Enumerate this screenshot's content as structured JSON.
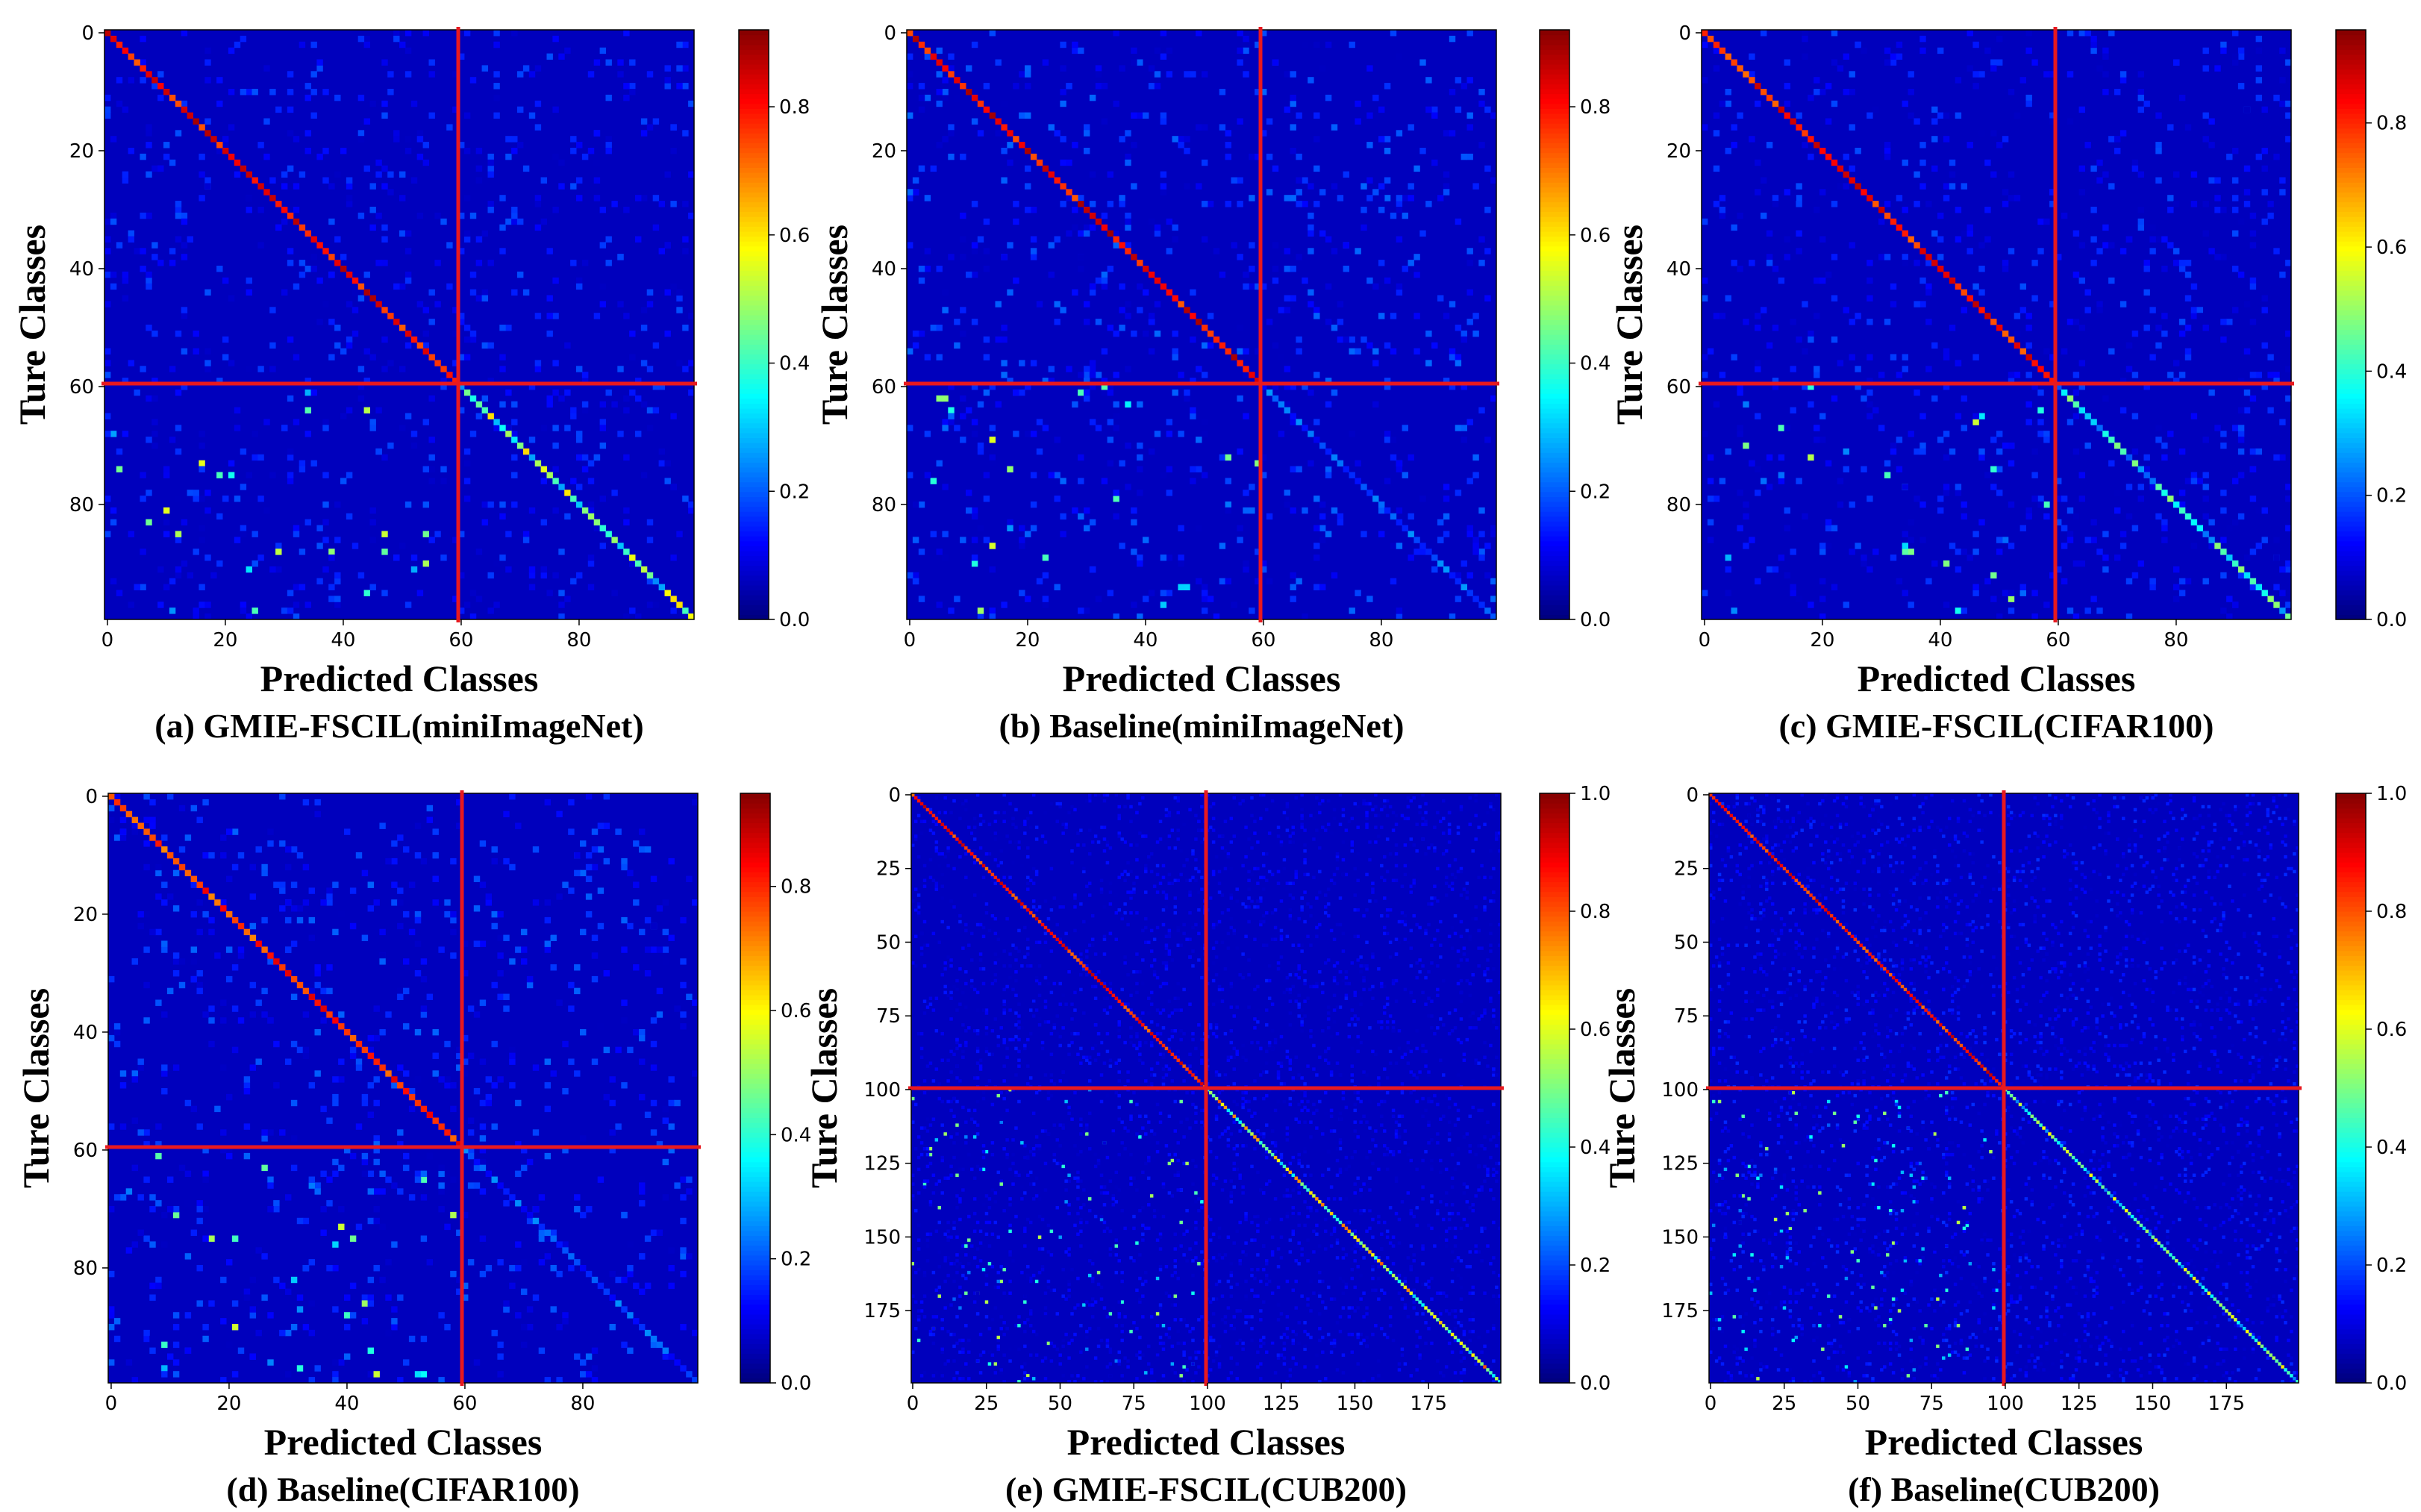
{
  "chart_data": [
    {
      "type": "heatmap",
      "title": "(a) GMIE-FSCIL(miniImageNet)",
      "xlabel": "Predicted Classes",
      "ylabel": "Ture Classes",
      "n_classes": 100,
      "base_classes": 60,
      "x_ticks": [
        "0",
        "20",
        "40",
        "60",
        "80"
      ],
      "y_ticks": [
        "0",
        "20",
        "40",
        "60",
        "80"
      ],
      "colorbar_ticks": [
        "0.0",
        "0.2",
        "0.4",
        "0.6",
        "0.8"
      ],
      "colorbar_range": [
        0,
        0.92
      ],
      "diag_base": 0.85,
      "diag_novel": 0.42,
      "noise": 0.06,
      "split_line_color": "#e8191f",
      "colormap": "jet"
    },
    {
      "type": "heatmap",
      "title": "(b) Baseline(miniImageNet)",
      "xlabel": "Predicted Classes",
      "ylabel": "Ture Classes",
      "n_classes": 100,
      "base_classes": 60,
      "x_ticks": [
        "0",
        "20",
        "40",
        "60",
        "80"
      ],
      "y_ticks": [
        "0",
        "20",
        "40",
        "60",
        "80"
      ],
      "colorbar_ticks": [
        "0.0",
        "0.2",
        "0.4",
        "0.6",
        "0.8"
      ],
      "colorbar_range": [
        0,
        0.92
      ],
      "diag_base": 0.85,
      "diag_novel": 0.18,
      "noise": 0.07,
      "split_line_color": "#e8191f",
      "colormap": "jet"
    },
    {
      "type": "heatmap",
      "title": "(c) GMIE-FSCIL(CIFAR100)",
      "xlabel": "Predicted Classes",
      "ylabel": "Ture Classes",
      "n_classes": 100,
      "base_classes": 60,
      "x_ticks": [
        "0",
        "20",
        "40",
        "60",
        "80"
      ],
      "y_ticks": [
        "0",
        "20",
        "40",
        "60",
        "80"
      ],
      "colorbar_ticks": [
        "0.0",
        "0.2",
        "0.4",
        "0.6",
        "0.8"
      ],
      "colorbar_range": [
        0,
        0.95
      ],
      "diag_base": 0.85,
      "diag_novel": 0.35,
      "noise": 0.06,
      "split_line_color": "#e8191f",
      "colormap": "jet"
    },
    {
      "type": "heatmap",
      "title": "(d) Baseline(CIFAR100)",
      "xlabel": "Predicted Classes",
      "ylabel": "Ture Classes",
      "n_classes": 100,
      "base_classes": 60,
      "x_ticks": [
        "0",
        "20",
        "40",
        "60",
        "80"
      ],
      "y_ticks": [
        "0",
        "20",
        "40",
        "60",
        "80"
      ],
      "colorbar_ticks": [
        "0.0",
        "0.2",
        "0.4",
        "0.6",
        "0.8"
      ],
      "colorbar_range": [
        0,
        0.95
      ],
      "diag_base": 0.82,
      "diag_novel": 0.18,
      "noise": 0.07,
      "split_line_color": "#e8191f",
      "colormap": "jet"
    },
    {
      "type": "heatmap",
      "title": "(e) GMIE-FSCIL(CUB200)",
      "xlabel": "Predicted Classes",
      "ylabel": "Ture Classes",
      "n_classes": 200,
      "base_classes": 100,
      "x_ticks": [
        "0",
        "25",
        "50",
        "75",
        "100",
        "125",
        "150",
        "175"
      ],
      "y_ticks": [
        "0",
        "25",
        "50",
        "75",
        "100",
        "125",
        "150",
        "175"
      ],
      "colorbar_ticks": [
        "0.0",
        "0.2",
        "0.4",
        "0.6",
        "0.8",
        "1.0"
      ],
      "colorbar_range": [
        0,
        1.0
      ],
      "diag_base": 0.9,
      "diag_novel": 0.55,
      "noise": 0.04,
      "split_line_color": "#e8191f",
      "colormap": "jet"
    },
    {
      "type": "heatmap",
      "title": "(f) Baseline(CUB200)",
      "xlabel": "Predicted Classes",
      "ylabel": "Ture Classes",
      "n_classes": 200,
      "base_classes": 100,
      "x_ticks": [
        "0",
        "25",
        "50",
        "75",
        "100",
        "125",
        "150",
        "175"
      ],
      "y_ticks": [
        "0",
        "25",
        "50",
        "75",
        "100",
        "125",
        "150",
        "175"
      ],
      "colorbar_ticks": [
        "0.0",
        "0.2",
        "0.4",
        "0.6",
        "0.8",
        "1.0"
      ],
      "colorbar_range": [
        0,
        1.0
      ],
      "diag_base": 0.9,
      "diag_novel": 0.45,
      "noise": 0.05,
      "split_line_color": "#e8191f",
      "colormap": "jet"
    }
  ]
}
